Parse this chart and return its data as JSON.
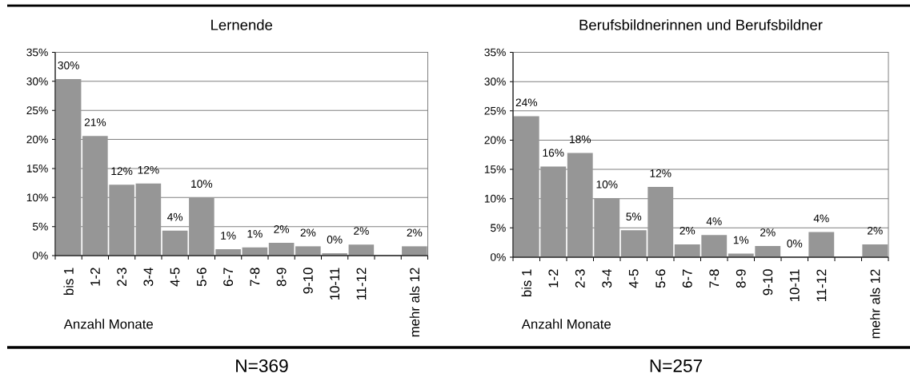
{
  "chart_data": [
    {
      "type": "bar",
      "title": "Lernende",
      "xlabel": "Anzahl Monate",
      "categories": [
        "bis 1",
        "1-2",
        "2-3",
        "3-4",
        "4-5",
        "5-6",
        "6-7",
        "7-8",
        "8-9",
        "9-10",
        "10-11",
        "11-12",
        null,
        "mehr als 12"
      ],
      "values": [
        30.4,
        20.6,
        12.2,
        12.4,
        4.3,
        10.0,
        1.1,
        1.4,
        2.2,
        1.6,
        0.4,
        1.9,
        null,
        1.6
      ],
      "value_labels": [
        "30%",
        "21%",
        "12%",
        "12%",
        "4%",
        "10%",
        "1%",
        "1%",
        "2%",
        "2%",
        "0%",
        "2%",
        null,
        "2%"
      ],
      "color": "#969696",
      "ylim": [
        0,
        35
      ],
      "yticks": [
        {
          "value": 0,
          "label": "0%"
        },
        {
          "value": 5,
          "label": "5%"
        },
        {
          "value": 10,
          "label": "10%"
        },
        {
          "value": 15,
          "label": "15%"
        },
        {
          "value": 20,
          "label": "20%"
        },
        {
          "value": 25,
          "label": "25%"
        },
        {
          "value": 30,
          "label": "30%"
        },
        {
          "value": 35,
          "label": "35%"
        }
      ],
      "grid": "y",
      "annotations": [
        "N=369"
      ]
    },
    {
      "type": "bar",
      "title": "Berufsbildnerinnen und Berufsbildner",
      "xlabel": "Anzahl Monate",
      "categories": [
        "bis 1",
        "1-2",
        "2-3",
        "3-4",
        "4-5",
        "5-6",
        "6-7",
        "7-8",
        "8-9",
        "9-10",
        "10-11",
        "11-12",
        null,
        "mehr als 12"
      ],
      "values": [
        24.1,
        15.5,
        17.8,
        10.1,
        4.6,
        12.0,
        2.2,
        3.8,
        0.6,
        1.9,
        0,
        4.3,
        null,
        2.2
      ],
      "value_labels": [
        "24%",
        "16%",
        "18%",
        "10%",
        "5%",
        "12%",
        "2%",
        "4%",
        "1%",
        "2%",
        "0%",
        "4%",
        null,
        "2%"
      ],
      "color": "#969696",
      "ylim": [
        0,
        35
      ],
      "yticks": [
        {
          "value": 0,
          "label": "0%"
        },
        {
          "value": 5,
          "label": "5%"
        },
        {
          "value": 10,
          "label": "10%"
        },
        {
          "value": 15,
          "label": "15%"
        },
        {
          "value": 20,
          "label": "20%"
        },
        {
          "value": 25,
          "label": "25%"
        },
        {
          "value": 30,
          "label": "30%"
        },
        {
          "value": 35,
          "label": "35%"
        }
      ],
      "grid": "y",
      "annotations": [
        "N=257"
      ]
    }
  ]
}
